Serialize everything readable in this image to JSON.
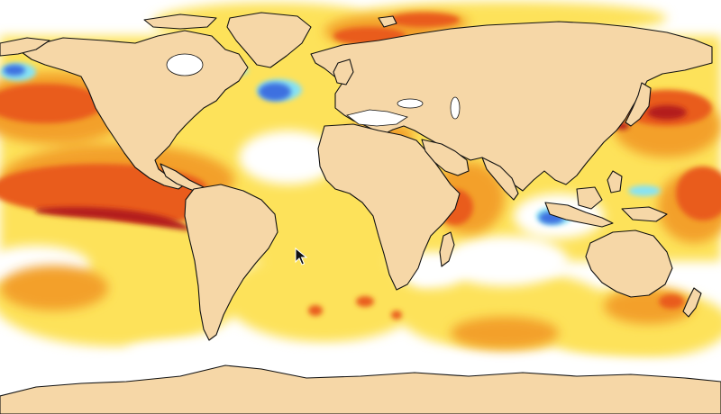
{
  "map": {
    "projection": "equirectangular",
    "central_meridian": "0",
    "ocean_base_color": "#ffffff",
    "land_color": "#f6d7a7",
    "coastline_color": "#111111",
    "cursor": "arrow-pointer-icon"
  },
  "anomaly_palette": [
    {
      "level": "strong-warm",
      "color": "#b41e1e"
    },
    {
      "level": "warm",
      "color": "#e95c1b"
    },
    {
      "level": "moderate-warm",
      "color": "#f3a02c"
    },
    {
      "level": "slight-warm",
      "color": "#fde25a"
    },
    {
      "level": "near-normal",
      "color": "#ffffff"
    },
    {
      "level": "slight-cool",
      "color": "#86e3f4"
    },
    {
      "level": "cool",
      "color": "#3d6fe0"
    },
    {
      "level": "strong-cool",
      "color": "#2240b8"
    }
  ]
}
